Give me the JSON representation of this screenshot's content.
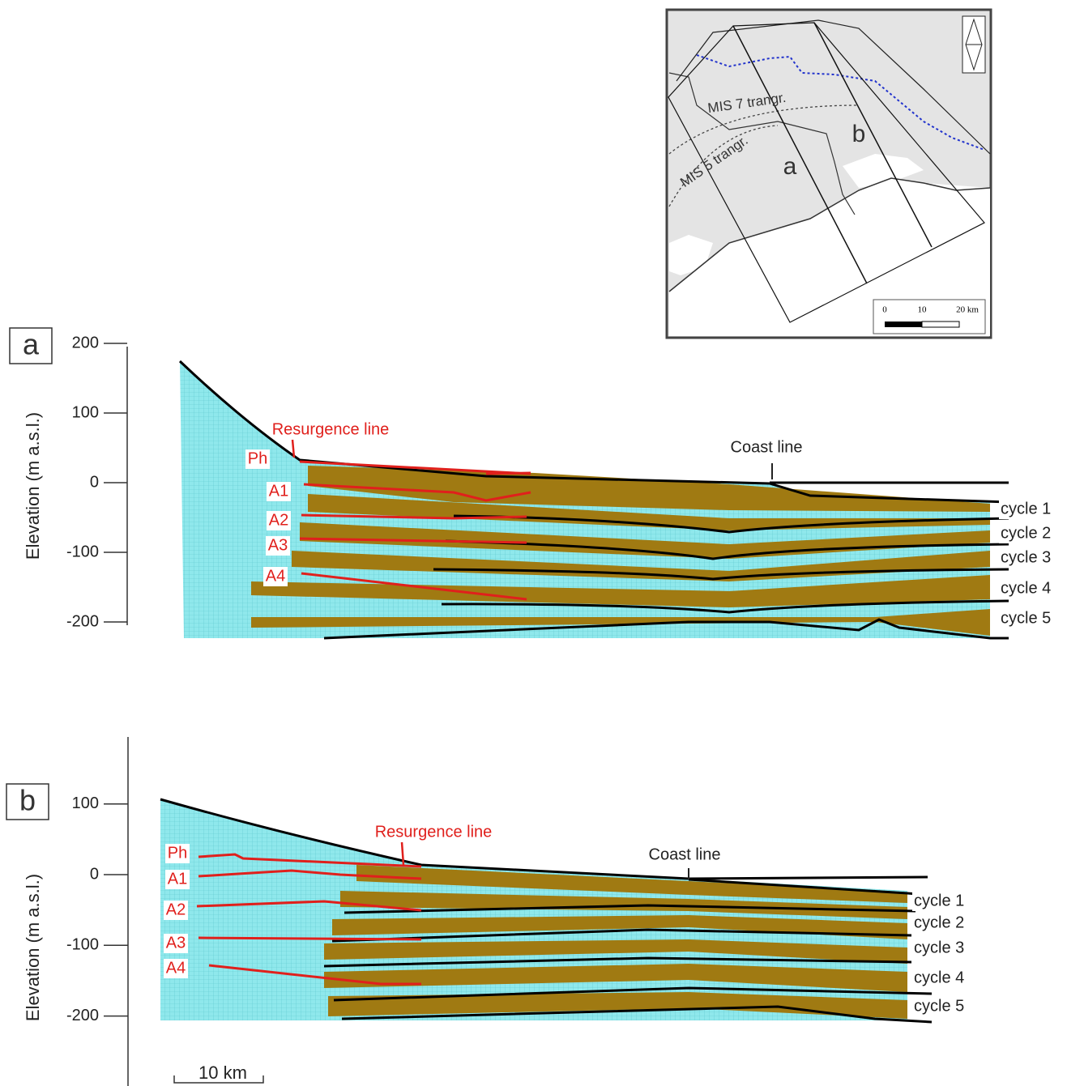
{
  "map": {
    "transgressions": [
      "MIS 7 trangr.",
      "MIS 5 trangr."
    ],
    "sections": [
      "a",
      "b"
    ],
    "scale": [
      "0",
      "10",
      "20 km"
    ]
  },
  "panels": [
    {
      "label": "a",
      "y_axis_label": "Elevation (m a.s.l.)",
      "yticks": [
        200,
        100,
        0,
        -100,
        -200
      ],
      "layers": [
        "Ph",
        "A1",
        "A2",
        "A3",
        "A4"
      ],
      "resurgence": "Resurgence line",
      "coast": "Coast line",
      "cycles": [
        "cycle 1",
        "cycle 2",
        "cycle 3",
        "cycle 4",
        "cycle 5"
      ]
    },
    {
      "label": "b",
      "y_axis_label": "Elevation (m a.s.l.)",
      "yticks": [
        100,
        0,
        -100,
        -200
      ],
      "layers": [
        "Ph",
        "A1",
        "A2",
        "A3",
        "A4"
      ],
      "resurgence": "Resurgence line",
      "coast": "Coast line",
      "cycles": [
        "cycle 1",
        "cycle 2",
        "cycle 3",
        "cycle 4",
        "cycle 5"
      ]
    }
  ],
  "scale_bar": "10 km"
}
